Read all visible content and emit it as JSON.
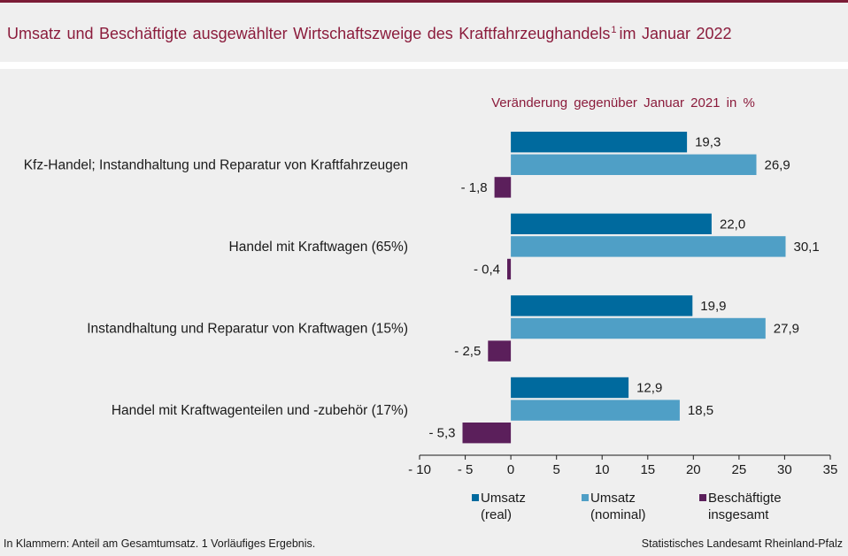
{
  "chart_data": {
    "type": "bar",
    "orientation": "horizontal",
    "title": "Umsatz und Beschäftigte ausgewählter Wirtschaftszweige des Kraftfahrzeughandels",
    "title_footnote_mark": "1",
    "title_suffix": "im Januar 2022",
    "subtitle": "Veränderung gegenüber Januar 2021 in %",
    "xlabel": "",
    "ylabel": "",
    "xlim": [
      -10,
      35
    ],
    "x_ticks": [
      -10,
      -5,
      0,
      5,
      10,
      15,
      20,
      25,
      30,
      35
    ],
    "x_tick_labels": [
      "- 10",
      "- 5",
      "0",
      "5",
      "10",
      "15",
      "20",
      "25",
      "30",
      "35"
    ],
    "grid": false,
    "legend_position": "bottom",
    "categories": [
      "Kfz-Handel; Instandhaltung und Reparatur von Kraftfahrzeugen",
      "Handel mit Kraftwagen (65%)",
      "Instandhaltung und Reparatur von Kraftwagen (15%)",
      "Handel mit Kraftwagenteilen und -zubehör (17%)"
    ],
    "series": [
      {
        "name_lines": [
          "Umsatz",
          "(real)"
        ],
        "color": "#006a9e",
        "values": [
          19.3,
          22.0,
          19.9,
          12.9
        ]
      },
      {
        "name_lines": [
          "Umsatz",
          "(nominal)"
        ],
        "color": "#4f9fc6",
        "values": [
          26.9,
          30.1,
          27.9,
          18.5
        ]
      },
      {
        "name_lines": [
          "Beschäftigte",
          "insgesamt"
        ],
        "color": "#5b1f5b",
        "values": [
          -1.8,
          -0.4,
          -2.5,
          -5.3
        ]
      }
    ]
  },
  "footer": {
    "note": "In Klammern: Anteil am Gesamtumsatz. 1 Vorläufiges Ergebnis.",
    "source": "Statistisches Landesamt Rheinland-Pfalz"
  },
  "colors": {
    "title": "#8b1c3c",
    "rule": "#7b1c36",
    "background": "#efefef",
    "separator": "#ffffff",
    "axis": "#1a1a1a"
  }
}
